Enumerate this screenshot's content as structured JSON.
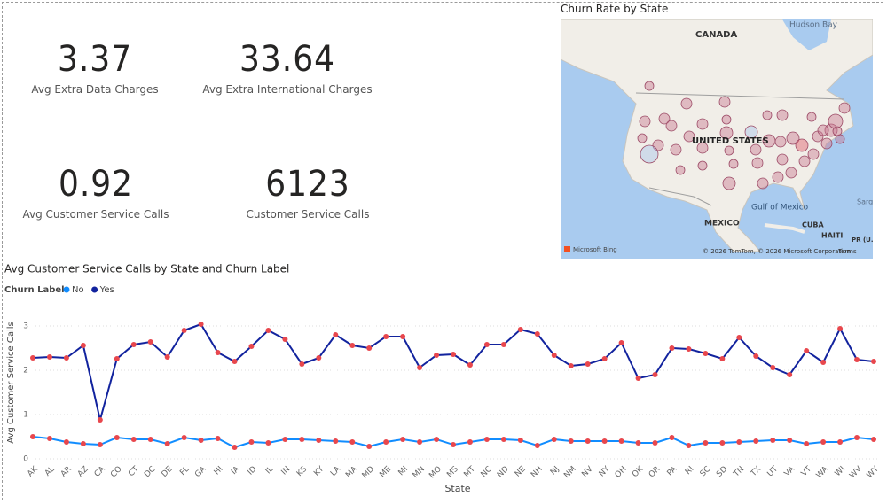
{
  "kpis": [
    {
      "value": 3.37,
      "label": "Avg Extra Data Charges"
    },
    {
      "value": 33.64,
      "label": "Avg Extra International Charges"
    },
    {
      "value": 0.92,
      "label": "Avg Customer Service Calls"
    },
    {
      "value": 6123,
      "label": "Customer Service Calls"
    }
  ],
  "map": {
    "title": "Churn Rate by State",
    "labels": [
      "Hudson Bay",
      "CANADA",
      "UNITED STATES",
      "Gulf of Mexico",
      "MEXICO",
      "CUBA",
      "HAITI",
      "PR (U.S.)",
      "Sarg",
      "Microsoft Bing",
      "© 2026 TomTom, © 2026 Microsoft Corporation",
      "Terms"
    ]
  },
  "chart_data": {
    "type": "line",
    "title": "Avg Customer Service Calls by State and Churn Label",
    "legend_title": "Churn Label",
    "x_label": "State",
    "y_label": "Avg Customer Service Calls",
    "categories": [
      "AK",
      "AL",
      "AR",
      "AZ",
      "CA",
      "CO",
      "CT",
      "DC",
      "DE",
      "FL",
      "GA",
      "HI",
      "IA",
      "ID",
      "IL",
      "IN",
      "KS",
      "KY",
      "LA",
      "MA",
      "MD",
      "ME",
      "MI",
      "MN",
      "MO",
      "MS",
      "MT",
      "NC",
      "ND",
      "NE",
      "NH",
      "NJ",
      "NM",
      "NV",
      "NY",
      "OH",
      "OK",
      "OR",
      "PA",
      "RI",
      "SC",
      "SD",
      "TN",
      "TX",
      "UT",
      "VA",
      "VT",
      "WA",
      "WI",
      "WV",
      "WY"
    ],
    "ylim": [
      0,
      3.2
    ],
    "yticks": [
      0,
      1,
      2,
      3
    ],
    "grid": true,
    "marker_color": "#e8474d",
    "series": [
      {
        "name": "No",
        "color": "#118dff",
        "values": [
          0.5,
          0.46,
          0.38,
          0.34,
          0.32,
          0.48,
          0.44,
          0.44,
          0.34,
          0.48,
          0.42,
          0.46,
          0.26,
          0.38,
          0.36,
          0.44,
          0.44,
          0.42,
          0.4,
          0.38,
          0.28,
          0.38,
          0.44,
          0.38,
          0.44,
          0.32,
          0.38,
          0.44,
          0.44,
          0.42,
          0.3,
          0.44,
          0.4,
          0.4,
          0.4,
          0.4,
          0.36,
          0.36,
          0.48,
          0.3,
          0.36,
          0.36,
          0.38,
          0.4,
          0.42,
          0.42,
          0.34,
          0.38,
          0.38,
          0.48,
          0.44
        ]
      },
      {
        "name": "Yes",
        "color": "#12239e",
        "values": [
          2.28,
          2.3,
          2.28,
          2.56,
          0.88,
          2.26,
          2.58,
          2.64,
          2.3,
          2.9,
          3.04,
          2.4,
          2.2,
          2.54,
          2.9,
          2.7,
          2.14,
          2.28,
          2.8,
          2.56,
          2.5,
          2.76,
          2.76,
          2.06,
          2.34,
          2.36,
          2.12,
          2.58,
          2.58,
          2.92,
          2.82,
          2.34,
          2.1,
          2.14,
          2.26,
          2.62,
          1.82,
          1.9,
          2.5,
          2.48,
          2.38,
          2.26,
          2.74,
          2.32,
          2.06,
          1.9,
          2.44,
          2.18,
          2.94,
          2.24,
          2.2
        ]
      }
    ]
  }
}
